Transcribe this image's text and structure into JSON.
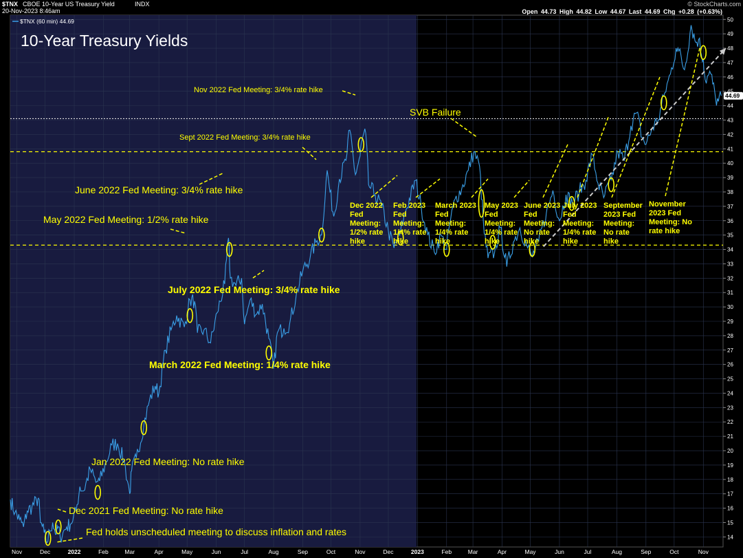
{
  "header": {
    "symbol": "$TNX",
    "name": "CBOE 10-Year US Treasury Yield",
    "exchange": "INDX",
    "date": "20-Nov-2023 8:46am",
    "brand": "© StockCharts.com",
    "quote": "Open 44.73  High 44.82  Low 44.67  Last 44.69  Chg +0.28 (+0.63%)",
    "legend_label": "$TNX (60 min) 44.69"
  },
  "chart_data": {
    "type": "line",
    "title": "10-Year Treasury Yields",
    "last_value": 44.69,
    "last_label": "44.69",
    "ylim": [
      13.3,
      50.3
    ],
    "y_ticks": [
      14,
      15,
      16,
      17,
      18,
      19,
      20,
      21,
      22,
      23,
      24,
      25,
      26,
      27,
      28,
      29,
      30,
      31,
      32,
      33,
      34,
      35,
      36,
      37,
      38,
      39,
      40,
      41,
      42,
      43,
      44,
      45,
      46,
      47,
      48,
      49,
      50
    ],
    "x_ticks": [
      {
        "label": "Nov",
        "date": "2021-11-01"
      },
      {
        "label": "Dec",
        "date": "2021-12-01"
      },
      {
        "label": "2022",
        "date": "2022-01-01"
      },
      {
        "label": "Feb",
        "date": "2022-02-01"
      },
      {
        "label": "Mar",
        "date": "2022-03-01"
      },
      {
        "label": "Apr",
        "date": "2022-04-01"
      },
      {
        "label": "May",
        "date": "2022-05-01"
      },
      {
        "label": "Jun",
        "date": "2022-06-01"
      },
      {
        "label": "Jul",
        "date": "2022-07-01"
      },
      {
        "label": "Aug",
        "date": "2022-08-01"
      },
      {
        "label": "Sep",
        "date": "2022-09-01"
      },
      {
        "label": "Oct",
        "date": "2022-10-01"
      },
      {
        "label": "Nov",
        "date": "2022-11-01"
      },
      {
        "label": "Dec",
        "date": "2022-12-01"
      },
      {
        "label": "2023",
        "date": "2023-01-01"
      },
      {
        "label": "Feb",
        "date": "2023-02-01"
      },
      {
        "label": "Mar",
        "date": "2023-03-01"
      },
      {
        "label": "Apr",
        "date": "2023-04-01"
      },
      {
        "label": "May",
        "date": "2023-05-01"
      },
      {
        "label": "Jun",
        "date": "2023-06-01"
      },
      {
        "label": "Jul",
        "date": "2023-07-01"
      },
      {
        "label": "Aug",
        "date": "2023-08-01"
      },
      {
        "label": "Sep",
        "date": "2023-09-01"
      },
      {
        "label": "Oct",
        "date": "2023-10-01"
      },
      {
        "label": "Nov",
        "date": "2023-11-01"
      }
    ],
    "series": [
      {
        "color": "#3aa0e8",
        "points": [
          [
            "2021-10-25",
            16.6
          ],
          [
            "2021-10-30",
            15.7
          ],
          [
            "2021-11-04",
            15.2
          ],
          [
            "2021-11-08",
            14.7
          ],
          [
            "2021-11-12",
            15.8
          ],
          [
            "2021-11-17",
            16.1
          ],
          [
            "2021-11-22",
            16.5
          ],
          [
            "2021-11-24",
            16.7
          ],
          [
            "2021-11-26",
            15.0
          ],
          [
            "2021-11-30",
            14.3
          ],
          [
            "2021-12-03",
            13.6
          ],
          [
            "2021-12-06",
            14.4
          ],
          [
            "2021-12-09",
            15.0
          ],
          [
            "2021-12-13",
            14.2
          ],
          [
            "2021-12-15",
            14.7
          ],
          [
            "2021-12-17",
            14.0
          ],
          [
            "2021-12-20",
            14.3
          ],
          [
            "2021-12-24",
            14.7
          ],
          [
            "2021-12-28",
            14.9
          ],
          [
            "2022-01-03",
            15.8
          ],
          [
            "2022-01-07",
            17.5
          ],
          [
            "2022-01-11",
            17.2
          ],
          [
            "2022-01-18",
            18.7
          ],
          [
            "2022-01-24",
            17.8
          ],
          [
            "2022-01-28",
            17.9
          ],
          [
            "2022-02-04",
            19.2
          ],
          [
            "2022-02-10",
            20.4
          ],
          [
            "2022-02-16",
            20.5
          ],
          [
            "2022-02-23",
            19.3
          ],
          [
            "2022-03-01",
            17.0
          ],
          [
            "2022-03-03",
            18.6
          ],
          [
            "2022-03-08",
            19.5
          ],
          [
            "2022-03-16",
            21.8
          ],
          [
            "2022-03-22",
            23.5
          ],
          [
            "2022-03-28",
            24.5
          ],
          [
            "2022-04-01",
            24.0
          ],
          [
            "2022-04-08",
            27.0
          ],
          [
            "2022-04-14",
            28.4
          ],
          [
            "2022-04-20",
            29.4
          ],
          [
            "2022-04-28",
            28.6
          ],
          [
            "2022-05-04",
            30.5
          ],
          [
            "2022-05-09",
            30.4
          ],
          [
            "2022-05-12",
            28.2
          ],
          [
            "2022-05-19",
            28.4
          ],
          [
            "2022-05-26",
            27.5
          ],
          [
            "2022-06-02",
            29.6
          ],
          [
            "2022-06-10",
            31.6
          ],
          [
            "2022-06-14",
            34.8
          ],
          [
            "2022-06-16",
            32.0
          ],
          [
            "2022-06-22",
            31.5
          ],
          [
            "2022-06-28",
            32.0
          ],
          [
            "2022-07-01",
            28.8
          ],
          [
            "2022-07-07",
            30.5
          ],
          [
            "2022-07-14",
            29.5
          ],
          [
            "2022-07-20",
            30.2
          ],
          [
            "2022-07-27",
            27.8
          ],
          [
            "2022-08-01",
            25.7
          ],
          [
            "2022-08-05",
            28.2
          ],
          [
            "2022-08-12",
            28.5
          ],
          [
            "2022-08-18",
            28.8
          ],
          [
            "2022-08-25",
            30.8
          ],
          [
            "2022-09-01",
            32.5
          ],
          [
            "2022-09-09",
            33.5
          ],
          [
            "2022-09-15",
            34.5
          ],
          [
            "2022-09-21",
            35.0
          ],
          [
            "2022-09-27",
            39.5
          ],
          [
            "2022-09-30",
            38.0
          ],
          [
            "2022-10-04",
            36.3
          ],
          [
            "2022-10-10",
            38.9
          ],
          [
            "2022-10-17",
            40.2
          ],
          [
            "2022-10-21",
            42.3
          ],
          [
            "2022-10-27",
            39.2
          ],
          [
            "2022-11-01",
            40.5
          ],
          [
            "2022-11-03",
            41.6
          ],
          [
            "2022-11-07",
            42.1
          ],
          [
            "2022-11-10",
            38.5
          ],
          [
            "2022-11-17",
            37.8
          ],
          [
            "2022-11-24",
            37.0
          ],
          [
            "2022-12-01",
            35.3
          ],
          [
            "2022-12-07",
            34.1
          ],
          [
            "2022-12-13",
            35.0
          ],
          [
            "2022-12-20",
            36.8
          ],
          [
            "2022-12-30",
            38.8
          ],
          [
            "2023-01-05",
            37.0
          ],
          [
            "2023-01-12",
            35.0
          ],
          [
            "2023-01-19",
            33.8
          ],
          [
            "2023-01-26",
            35.0
          ],
          [
            "2023-02-01",
            34.0
          ],
          [
            "2023-02-03",
            35.3
          ],
          [
            "2023-02-10",
            37.5
          ],
          [
            "2023-02-17",
            38.2
          ],
          [
            "2023-02-24",
            39.5
          ],
          [
            "2023-03-02",
            40.8
          ],
          [
            "2023-03-08",
            39.8
          ],
          [
            "2023-03-13",
            35.1
          ],
          [
            "2023-03-17",
            33.4
          ],
          [
            "2023-03-24",
            33.8
          ],
          [
            "2023-03-30",
            35.5
          ],
          [
            "2023-04-06",
            32.8
          ],
          [
            "2023-04-13",
            34.5
          ],
          [
            "2023-04-20",
            35.5
          ],
          [
            "2023-04-27",
            34.3
          ],
          [
            "2023-05-03",
            33.5
          ],
          [
            "2023-05-10",
            34.6
          ],
          [
            "2023-05-18",
            36.5
          ],
          [
            "2023-05-25",
            38.1
          ],
          [
            "2023-06-01",
            36.0
          ],
          [
            "2023-06-08",
            37.8
          ],
          [
            "2023-06-15",
            37.2
          ],
          [
            "2023-06-22",
            38.0
          ],
          [
            "2023-06-29",
            38.8
          ],
          [
            "2023-07-06",
            40.6
          ],
          [
            "2023-07-12",
            38.6
          ],
          [
            "2023-07-18",
            37.6
          ],
          [
            "2023-07-26",
            38.8
          ],
          [
            "2023-08-02",
            40.8
          ],
          [
            "2023-08-09",
            40.2
          ],
          [
            "2023-08-16",
            42.6
          ],
          [
            "2023-08-22",
            43.5
          ],
          [
            "2023-08-28",
            41.8
          ],
          [
            "2023-09-01",
            41.3
          ],
          [
            "2023-09-08",
            42.5
          ],
          [
            "2023-09-14",
            43.0
          ],
          [
            "2023-09-21",
            44.9
          ],
          [
            "2023-09-27",
            46.2
          ],
          [
            "2023-10-03",
            48.0
          ],
          [
            "2023-10-06",
            47.8
          ],
          [
            "2023-10-12",
            46.5
          ],
          [
            "2023-10-19",
            49.6
          ],
          [
            "2023-10-24",
            48.4
          ],
          [
            "2023-10-27",
            48.6
          ],
          [
            "2023-11-01",
            47.2
          ],
          [
            "2023-11-03",
            45.8
          ],
          [
            "2023-11-09",
            46.2
          ],
          [
            "2023-11-14",
            44.5
          ],
          [
            "2023-11-17",
            44.3
          ],
          [
            "2023-11-20",
            44.69
          ]
        ]
      }
    ],
    "reference_lines": [
      {
        "y": 43.1,
        "color": "#dddddd",
        "style": "dotted"
      },
      {
        "y": 40.8,
        "color": "#ffff00",
        "style": "dashed"
      },
      {
        "y": 34.3,
        "color": "#ffff00",
        "style": "dashed"
      }
    ],
    "trend_line": {
      "from": [
        "2023-05-15",
        34.2
      ],
      "to": [
        "2023-11-25",
        48.0
      ],
      "color": "#cccccc"
    },
    "highlight_band": {
      "from": "2021-10-25",
      "to": "2022-12-31"
    },
    "fed_meetings": [
      {
        "date": "2021-12-04",
        "y": 13.9,
        "label": "Fed holds unscheduled meeting to discuss inflation and rates"
      },
      {
        "date": "2021-12-15",
        "y": 14.7,
        "label": "Dec 2021 Fed Meeting: No rate hike"
      },
      {
        "date": "2022-01-26",
        "y": 17.1,
        "label": "Jan 2022 Fed Meeting: No rate hike"
      },
      {
        "date": "2022-03-16",
        "y": 21.6,
        "label": "March 2022 Fed Meeting: 1/4% rate hike"
      },
      {
        "date": "2022-05-04",
        "y": 29.4,
        "label": "May 2022 Fed Meeting: 1/2% rate hike"
      },
      {
        "date": "2022-06-15",
        "y": 34.0,
        "label": "June 2022 Fed Meeting: 3/4% rate hike"
      },
      {
        "date": "2022-07-27",
        "y": 26.8,
        "label": "July 2022 Fed Meeting: 3/4% rate hike"
      },
      {
        "date": "2022-09-21",
        "y": 35.0,
        "label": "Sept 2022 Fed Meeting: 3/4% rate hike"
      },
      {
        "date": "2022-11-02",
        "y": 41.3,
        "label": "Nov 2022 Fed Meeting: 3/4% rate hike"
      },
      {
        "date": "2022-12-14",
        "y": 34.8,
        "label": "Dec 2022 Fed Meeting: 1/2% rate hike"
      },
      {
        "date": "2023-02-01",
        "y": 34.0,
        "label": "Feb 2023 Fed Meeting: 1/4% rate hike"
      },
      {
        "date": "2023-03-10",
        "y": 37.2,
        "label": "SVB Failure"
      },
      {
        "date": "2023-03-22",
        "y": 34.5,
        "label": "March 2023 Fed Meeting: 1/4% rate hike"
      },
      {
        "date": "2023-05-03",
        "y": 34.0,
        "label": "May 2023 Fed Meeting: 1/4% rate hike"
      },
      {
        "date": "2023-06-14",
        "y": 37.2,
        "label": "June 2023 Fed Meeting: No rate hike"
      },
      {
        "date": "2023-07-26",
        "y": 38.5,
        "label": "July 2023 Fed Meeting: 1/4% rate hike"
      },
      {
        "date": "2023-09-20",
        "y": 44.2,
        "label": "September 2023 Fed Meeting: No rate hike"
      },
      {
        "date": "2023-11-01",
        "y": 47.7,
        "label": "November 2023 Fed Meeting: No rate hike"
      }
    ]
  }
}
